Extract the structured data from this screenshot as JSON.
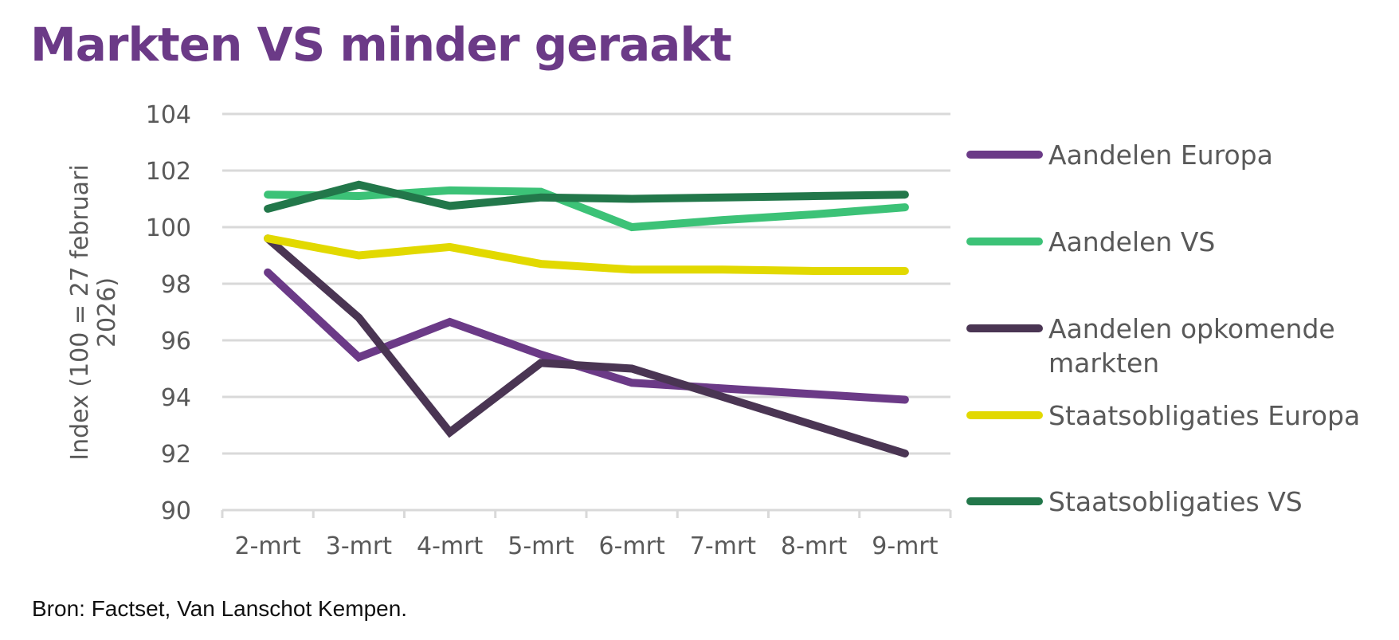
{
  "title": "Markten VS minder geraakt",
  "source": "Bron: Factset, Van Lanschot Kempen.",
  "chart_data": {
    "type": "line",
    "title": "Markten VS minder geraakt",
    "xlabel": "",
    "ylabel": "Index (100 = 27 februari 2026)",
    "ylabel_lines": [
      "Index (100 = 27 februari",
      "2026)"
    ],
    "ylim": [
      90,
      104
    ],
    "yticks": [
      90,
      92,
      94,
      96,
      98,
      100,
      102,
      104
    ],
    "grid": true,
    "legend_position": "right",
    "categories": [
      "2-mrt",
      "3-mrt",
      "4-mrt",
      "5-mrt",
      "6-mrt",
      "7-mrt",
      "8-mrt",
      "9-mrt"
    ],
    "series": [
      {
        "name": "Aandelen Europa",
        "name_lines": [
          "Aandelen Europa"
        ],
        "color": "#6b3a87",
        "values": [
          98.4,
          95.4,
          96.65,
          95.5,
          94.5,
          94.3,
          94.1,
          93.9
        ]
      },
      {
        "name": "Aandelen VS",
        "name_lines": [
          "Aandelen VS"
        ],
        "color": "#3cc277",
        "values": [
          101.15,
          101.1,
          101.3,
          101.25,
          100.0,
          100.25,
          100.45,
          100.7
        ]
      },
      {
        "name": "Aandelen opkomende markten",
        "name_lines": [
          "Aandelen opkomende",
          "markten"
        ],
        "color": "#4a3553",
        "values": [
          99.6,
          96.8,
          92.75,
          95.2,
          95.0,
          94.0,
          93.0,
          92.0
        ]
      },
      {
        "name": "Staatsobligaties Europa",
        "name_lines": [
          "Staatsobligaties Europa"
        ],
        "color": "#e2d900",
        "values": [
          99.6,
          99.0,
          99.3,
          98.7,
          98.5,
          98.5,
          98.45,
          98.45
        ]
      },
      {
        "name": "Staatsobligaties VS",
        "name_lines": [
          "Staatsobligaties VS"
        ],
        "color": "#22774a",
        "values": [
          100.65,
          101.5,
          100.75,
          101.05,
          101.0,
          101.05,
          101.1,
          101.15
        ]
      }
    ]
  }
}
